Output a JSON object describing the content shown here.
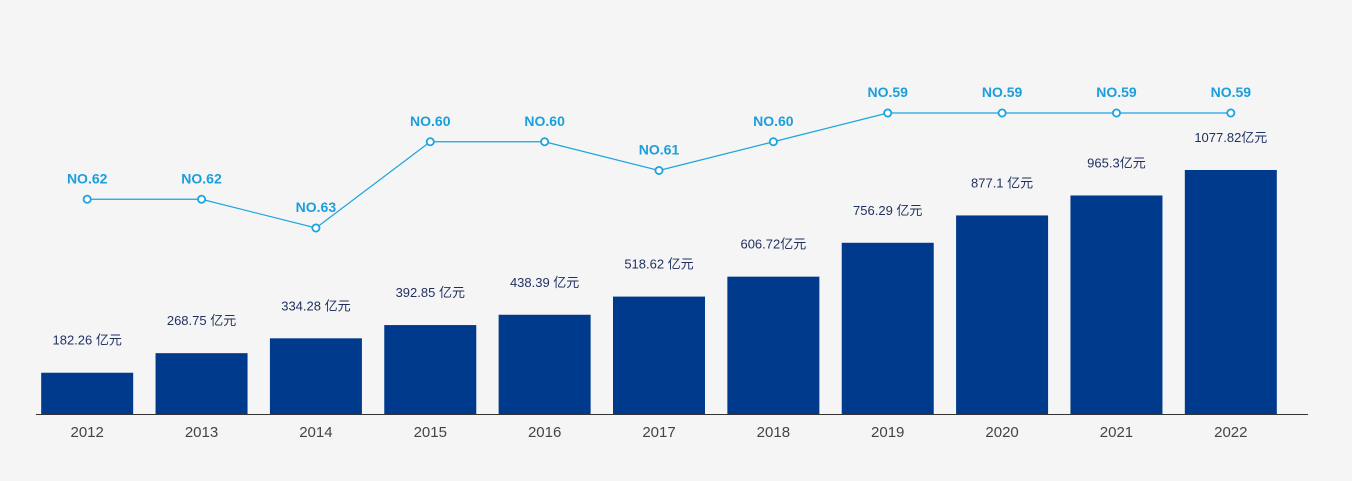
{
  "colors": {
    "background": "#f5f5f5",
    "bar": "#003a8c",
    "line": "#1aa3e0",
    "rank_text": "#1a9fdc",
    "bar_text": "#1f2f5f",
    "axis": "#333333"
  },
  "chart_data": {
    "type": "bar",
    "categories": [
      "2012",
      "2013",
      "2014",
      "2015",
      "2016",
      "2017",
      "2018",
      "2019",
      "2020",
      "2021",
      "2022"
    ],
    "series": [
      {
        "type": "bar",
        "values": [
          182.26,
          268.75,
          334.28,
          392.85,
          438.39,
          518.62,
          606.72,
          756.29,
          877.1,
          965.3,
          1077.82
        ],
        "labels": [
          "182.26 亿元",
          "268.75 亿元",
          "334.28 亿元",
          "392.85 亿元",
          "438.39 亿元",
          "518.62 亿元",
          "606.72亿元",
          "756.29 亿元",
          "877.1 亿元",
          "965.3亿元",
          "1077.82亿元"
        ]
      },
      {
        "type": "line",
        "values": [
          62,
          62,
          63,
          60,
          60,
          61,
          60,
          59,
          59,
          59,
          59
        ],
        "labels": [
          "NO.62",
          "NO.62",
          "NO.63",
          "NO.60",
          "NO.60",
          "NO.61",
          "NO.60",
          "NO.59",
          "NO.59",
          "NO.59",
          "NO.59"
        ]
      }
    ],
    "ylim": [
      0,
      1077.82
    ],
    "rank_range": [
      59,
      63
    ],
    "grid": false,
    "legend": "none"
  }
}
